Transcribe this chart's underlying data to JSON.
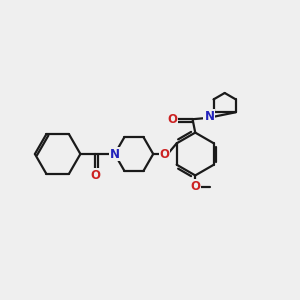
{
  "bg_color": "#efefef",
  "bond_color": "#1a1a1a",
  "atom_color_N": "#2222bb",
  "atom_color_O": "#cc2222",
  "bond_lw": 1.6,
  "font_size_atom": 8.5,
  "xlim": [
    0,
    11
  ],
  "ylim": [
    0,
    10
  ]
}
